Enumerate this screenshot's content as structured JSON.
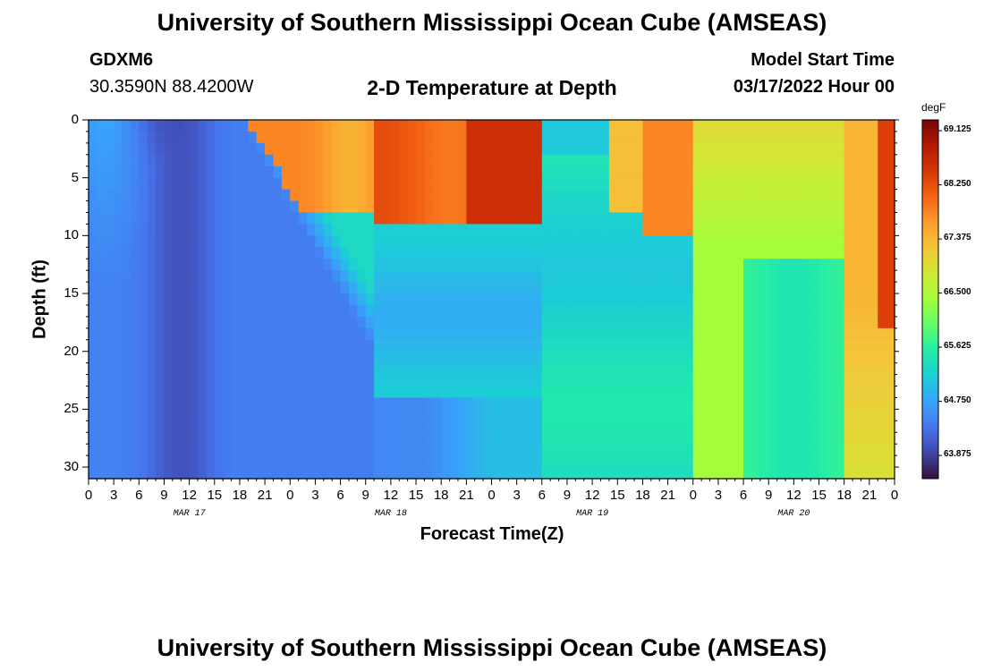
{
  "page": {
    "title": "University of Southern Mississippi Ocean Cube (AMSEAS)",
    "station_id": "GDXM6",
    "coords": "30.3590N  88.4200W",
    "chart_title": "2-D Temperature at Depth",
    "model_start_label": "Model Start Time",
    "model_start_value": "03/17/2022 Hour 00",
    "footer_title": "University of Southern Mississippi Ocean Cube (AMSEAS)"
  },
  "chart_data": {
    "type": "heatmap",
    "xlabel": "Forecast Time(Z)",
    "ylabel": "Depth (ft)",
    "units": "degF",
    "xlim": [
      0,
      96
    ],
    "ylim": [
      0,
      31
    ],
    "x_ticks": [
      0,
      3,
      6,
      9,
      12,
      15,
      18,
      21,
      24,
      27,
      30,
      33,
      36,
      39,
      42,
      45,
      48,
      51,
      54,
      57,
      60,
      63,
      66,
      69,
      72,
      75,
      78,
      81,
      84,
      87,
      90,
      93,
      96
    ],
    "x_tick_labels": [
      "0",
      "3",
      "6",
      "9",
      "12",
      "15",
      "18",
      "21",
      "0",
      "3",
      "6",
      "9",
      "12",
      "15",
      "18",
      "21",
      "0",
      "3",
      "6",
      "9",
      "12",
      "15",
      "18",
      "21",
      "0",
      "3",
      "6",
      "9",
      "12",
      "15",
      "18",
      "21",
      "0"
    ],
    "day_labels": [
      {
        "x": 12,
        "label": "MAR 17"
      },
      {
        "x": 36,
        "label": "MAR 18"
      },
      {
        "x": 60,
        "label": "MAR 19"
      },
      {
        "x": 84,
        "label": "MAR 20"
      }
    ],
    "y_ticks": [
      0,
      5,
      10,
      15,
      20,
      25,
      30
    ],
    "y_tick_labels": [
      "0",
      "5",
      "10",
      "15",
      "20",
      "25",
      "30"
    ],
    "colorbar_ticks": [
      69.125,
      68.25,
      67.375,
      66.5,
      65.625,
      64.75,
      63.875
    ],
    "colorbar_tick_labels": [
      "69.125",
      "68.250",
      "67.375",
      "66.500",
      "65.625",
      "64.750",
      "63.875"
    ],
    "colorbar_range": [
      63.5,
      69.3
    ],
    "colors": [
      "#30123b",
      "#4145ab",
      "#4675ed",
      "#39a2fc",
      "#1bcfd4",
      "#24eca6",
      "#61fc6c",
      "#a4fc3b",
      "#d1e834",
      "#f3c63a",
      "#fe9b2d",
      "#f36315",
      "#d93806",
      "#b11901",
      "#7a0402"
    ],
    "depths": [
      0,
      2,
      4,
      6,
      8,
      10,
      12,
      14,
      16,
      18,
      20,
      22,
      24,
      26,
      28,
      30,
      31
    ],
    "times": [
      0,
      3,
      6,
      9,
      12,
      15,
      18,
      21,
      24,
      27,
      30,
      33,
      36,
      39,
      42,
      45,
      48,
      51,
      54,
      57,
      60,
      63,
      66,
      69,
      72,
      75,
      78,
      81,
      84,
      87,
      90,
      93,
      96
    ],
    "grid": "off"
  }
}
